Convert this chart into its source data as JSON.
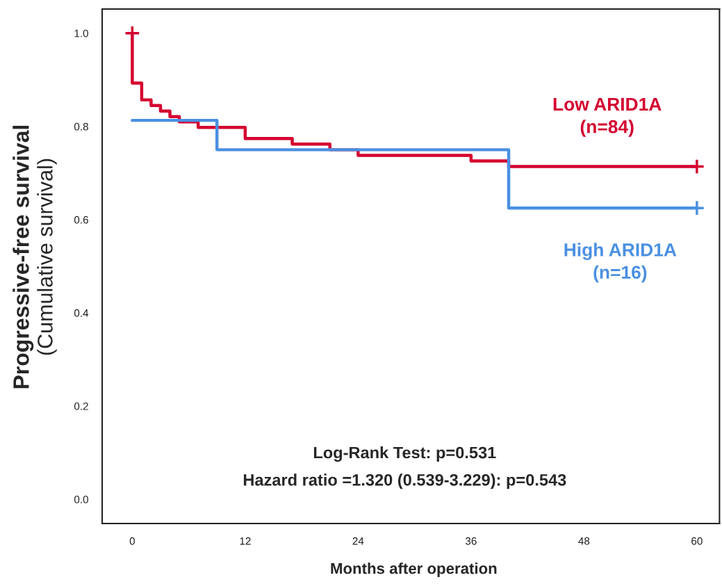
{
  "chart_data": {
    "type": "step",
    "xlabel": "Months after operation",
    "ylabel": "Progressive-free survival\n(Cumulative survival)",
    "series": [
      {
        "name": "Low ARID1A\n(n=84)",
        "color": "#d4002f",
        "x": [
          0,
          0,
          1,
          2,
          3,
          4,
          5,
          7,
          12,
          17,
          21,
          24,
          36,
          40,
          60
        ],
        "values": [
          1.0,
          0.893,
          0.857,
          0.845,
          0.833,
          0.821,
          0.81,
          0.798,
          0.774,
          0.762,
          0.75,
          0.738,
          0.726,
          0.714,
          0.714
        ]
      },
      {
        "name": "High ARID1A\n(n=16)",
        "color": "#4a90e2",
        "x": [
          0,
          9,
          40,
          60
        ],
        "values": [
          0.813,
          0.75,
          0.625,
          0.625
        ]
      },
      {
        "type": "scatter",
        "marker": "cross",
        "color": "#d4002f",
        "x": [
          0,
          60
        ],
        "values": [
          1.0,
          0.714
        ]
      },
      {
        "type": "scatter",
        "marker": "cross",
        "color": "#4a90e2",
        "x": [
          60
        ],
        "values": [
          0.625
        ]
      }
    ],
    "xlim": [
      -3.2,
      62.4
    ],
    "xticks": [
      0,
      12,
      24,
      36,
      48,
      60
    ],
    "ylim": [
      -0.052,
      1.052
    ],
    "yticks": [
      {
        "value": 0,
        "label": "0.0"
      },
      {
        "value": 0.2,
        "label": "0.2"
      },
      {
        "value": 0.4,
        "label": "0.4"
      },
      {
        "value": 0.6,
        "label": "0.6"
      },
      {
        "value": 0.8,
        "label": "0.8"
      },
      {
        "value": 1.0,
        "label": "1.0"
      }
    ],
    "annotations": [
      "Log-Rank Test: p=0.531",
      "Hazard ratio =1.320 (0.539-3.229): p=0.543"
    ],
    "grid": false,
    "legend": false,
    "line_style": "solid"
  }
}
